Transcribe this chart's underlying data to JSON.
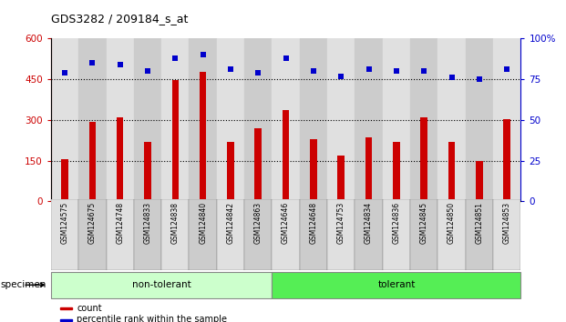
{
  "title": "GDS3282 / 209184_s_at",
  "categories": [
    "GSM124575",
    "GSM124675",
    "GSM124748",
    "GSM124833",
    "GSM124838",
    "GSM124840",
    "GSM124842",
    "GSM124863",
    "GSM124646",
    "GSM124648",
    "GSM124753",
    "GSM124834",
    "GSM124836",
    "GSM124845",
    "GSM124850",
    "GSM124851",
    "GSM124853"
  ],
  "bar_values": [
    155,
    293,
    308,
    220,
    448,
    478,
    220,
    270,
    335,
    230,
    167,
    237,
    220,
    308,
    220,
    148,
    302
  ],
  "scatter_values": [
    79,
    85,
    84,
    80,
    88,
    90,
    81,
    79,
    88,
    80,
    77,
    81,
    80,
    80,
    76,
    75,
    81
  ],
  "non_tolerant_count": 8,
  "tolerant_count": 9,
  "bar_color": "#cc0000",
  "scatter_color": "#0000cc",
  "ylim_left": [
    0,
    600
  ],
  "ylim_right": [
    0,
    100
  ],
  "yticks_left": [
    0,
    150,
    300,
    450,
    600
  ],
  "yticks_right": [
    0,
    25,
    50,
    75,
    100
  ],
  "grid_values": [
    150,
    300,
    450
  ],
  "background_color": "#ffffff",
  "bar_bg_even": "#e0e0e0",
  "bar_bg_odd": "#cccccc",
  "non_tolerant_color": "#ccffcc",
  "tolerant_color": "#55ee55",
  "legend_count_label": "count",
  "legend_pct_label": "percentile rank within the sample",
  "specimen_label": "specimen"
}
